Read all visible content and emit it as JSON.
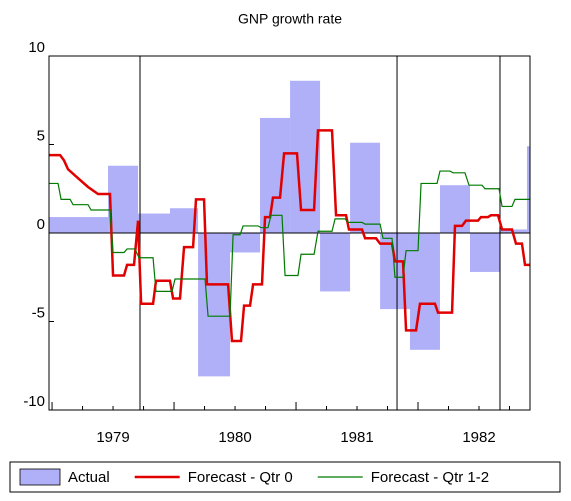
{
  "chart_data": {
    "type": "combo",
    "title": "GNP growth rate",
    "xlim": [
      1978.975,
      1982.918
    ],
    "xticks": [
      {
        "value": 1979,
        "label": "1979"
      },
      {
        "value": 1980,
        "label": "1980"
      },
      {
        "value": 1981,
        "label": "1981"
      },
      {
        "value": 1982,
        "label": "1982"
      }
    ],
    "ylim": [
      -10,
      10
    ],
    "yticks": [
      10,
      5,
      0,
      -5,
      -10
    ],
    "reference_lines": [
      1979.721,
      1981.828,
      1982.672
    ],
    "legend": "bottom",
    "series": [
      {
        "name": "Actual",
        "type": "bar",
        "color": "#b0b0f8",
        "x": [
          1978.975,
          1979.459,
          1979.705,
          1979.967,
          1980.197,
          1980.459,
          1980.705,
          1980.951,
          1981.197,
          1981.443,
          1981.689,
          1981.934,
          1982.18,
          1982.426,
          1982.672,
          1982.893
        ],
        "values": [
          0.9,
          3.8,
          1.1,
          1.4,
          -8.1,
          -1.1,
          6.5,
          8.6,
          -3.3,
          5.1,
          -4.3,
          -6.6,
          2.7,
          -2.2,
          0.2,
          4.9
        ]
      },
      {
        "name": "Forecast - Qtr 0",
        "type": "line",
        "color": "#e00000",
        "x": [
          1978.975,
          1979.066,
          1979.098,
          1979.131,
          1979.213,
          1979.295,
          1979.377,
          1979.475,
          1979.5,
          1979.59,
          1979.615,
          1979.672,
          1979.705,
          1979.73,
          1979.828,
          1979.852,
          1979.967,
          1979.992,
          1980.049,
          1980.082,
          1980.156,
          1980.18,
          1980.246,
          1980.27,
          1980.443,
          1980.475,
          1980.549,
          1980.574,
          1980.623,
          1980.648,
          1980.721,
          1980.746,
          1980.787,
          1980.811,
          1980.869,
          1980.902,
          1981.008,
          1981.041,
          1981.148,
          1981.18,
          1981.295,
          1981.328,
          1981.41,
          1981.434,
          1981.541,
          1981.566,
          1981.656,
          1981.689,
          1981.787,
          1981.811,
          1981.877,
          1981.902,
          1981.984,
          1982.016,
          1982.139,
          1982.164,
          1982.279,
          1982.303,
          1982.361,
          1982.393,
          1982.492,
          1982.516,
          1982.574,
          1982.598,
          1982.656,
          1982.689,
          1982.77,
          1982.803,
          1982.852,
          1982.877,
          1982.918
        ],
        "values": [
          4.4,
          4.4,
          4.1,
          3.6,
          3.1,
          2.6,
          2.2,
          2.2,
          -2.4,
          -2.4,
          -1.8,
          -1.8,
          0.7,
          -4.0,
          -4.0,
          -2.7,
          -2.7,
          -3.7,
          -3.7,
          -0.8,
          -0.8,
          1.9,
          1.9,
          -2.9,
          -2.9,
          -6.1,
          -6.1,
          -4.1,
          -4.1,
          -2.9,
          -2.9,
          0.9,
          0.9,
          2.0,
          2.0,
          4.5,
          4.5,
          1.3,
          1.3,
          5.8,
          5.8,
          1.0,
          1.0,
          0.2,
          0.2,
          -0.3,
          -0.3,
          -0.6,
          -0.6,
          -1.6,
          -1.6,
          -5.5,
          -5.5,
          -4.0,
          -4.0,
          -4.5,
          -4.5,
          0.4,
          0.4,
          0.7,
          0.7,
          0.9,
          0.9,
          1.0,
          1.0,
          0.2,
          0.2,
          -0.6,
          -0.6,
          -1.8,
          -1.8
        ]
      },
      {
        "name": "Forecast - Qtr 1-2",
        "type": "line",
        "color": "#007a00",
        "x": [
          1978.975,
          1979.049,
          1979.074,
          1979.148,
          1979.172,
          1979.295,
          1979.32,
          1979.475,
          1979.5,
          1979.59,
          1979.615,
          1979.68,
          1979.713,
          1979.828,
          1979.852,
          1979.984,
          1980.008,
          1980.254,
          1980.279,
          1980.459,
          1980.484,
          1980.541,
          1980.566,
          1980.689,
          1980.713,
          1980.77,
          1980.795,
          1980.885,
          1980.91,
          1981.016,
          1981.041,
          1981.148,
          1981.18,
          1981.295,
          1981.32,
          1981.402,
          1981.426,
          1981.541,
          1981.566,
          1981.689,
          1981.713,
          1981.787,
          1981.811,
          1981.877,
          1981.902,
          1982.0,
          1982.025,
          1982.156,
          1982.18,
          1982.262,
          1982.287,
          1982.385,
          1982.418,
          1982.525,
          1982.549,
          1982.664,
          1982.689,
          1982.77,
          1982.795,
          1982.918
        ],
        "values": [
          2.8,
          2.8,
          1.9,
          1.9,
          1.6,
          1.6,
          1.3,
          1.3,
          -1.1,
          -1.1,
          -0.9,
          -0.9,
          -1.4,
          -1.4,
          -3.3,
          -3.3,
          -2.6,
          -2.6,
          -4.7,
          -4.7,
          -0.1,
          -0.1,
          0.4,
          0.4,
          0.3,
          0.3,
          1.0,
          1.0,
          -2.4,
          -2.4,
          -1.2,
          -1.2,
          0.1,
          0.1,
          0.8,
          0.8,
          0.6,
          0.6,
          0.5,
          0.5,
          -0.3,
          -0.3,
          -2.5,
          -2.5,
          -1.0,
          -1.0,
          2.8,
          2.8,
          3.5,
          3.5,
          3.4,
          3.4,
          2.7,
          2.7,
          2.5,
          2.5,
          1.5,
          1.5,
          1.9,
          1.9
        ]
      }
    ]
  }
}
